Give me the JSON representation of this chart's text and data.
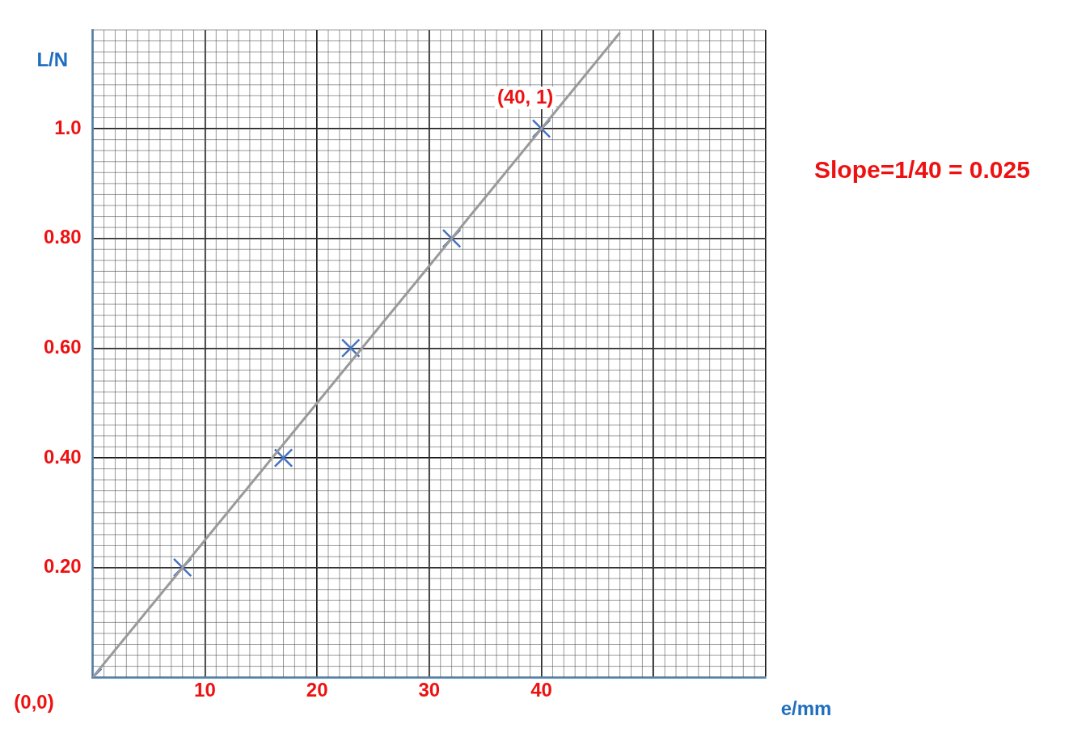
{
  "chart_data": {
    "type": "scatter",
    "xlabel": "e/mm",
    "ylabel": "L/N",
    "xlim": [
      0,
      60
    ],
    "ylim": [
      0,
      1.18
    ],
    "xticks": [
      {
        "value": 0,
        "label": null
      },
      10,
      20,
      30,
      40,
      {
        "value": 50,
        "label": null
      },
      {
        "value": 60,
        "label": null
      }
    ],
    "yticks": [
      {
        "value": 0,
        "label": null
      },
      {
        "value": 0.2,
        "label": "0.20"
      },
      {
        "value": 0.4,
        "label": "0.40"
      },
      {
        "value": 0.6,
        "label": "0.60"
      },
      {
        "value": 0.8,
        "label": "0.80"
      },
      {
        "value": 1.0,
        "label": "1.0"
      }
    ],
    "grid": true,
    "legend": false,
    "series": [
      {
        "type": "line",
        "color": "#9a9a9a",
        "x": [
          0,
          47
        ],
        "values": [
          0,
          1.175
        ],
        "line_style": "solid"
      },
      {
        "color": "#4472c4",
        "x": [
          0,
          8,
          17,
          23,
          32,
          40
        ],
        "values": [
          0,
          0.2,
          0.4,
          0.6,
          0.8,
          1.0
        ],
        "marker": "cross"
      }
    ],
    "annotations": [
      {
        "text": "(40, 1)",
        "x": 40,
        "y": 1.0
      },
      {
        "text": "(0,0)",
        "x": 0,
        "y": 0
      },
      "Slope=1/40 = 0.025"
    ]
  }
}
